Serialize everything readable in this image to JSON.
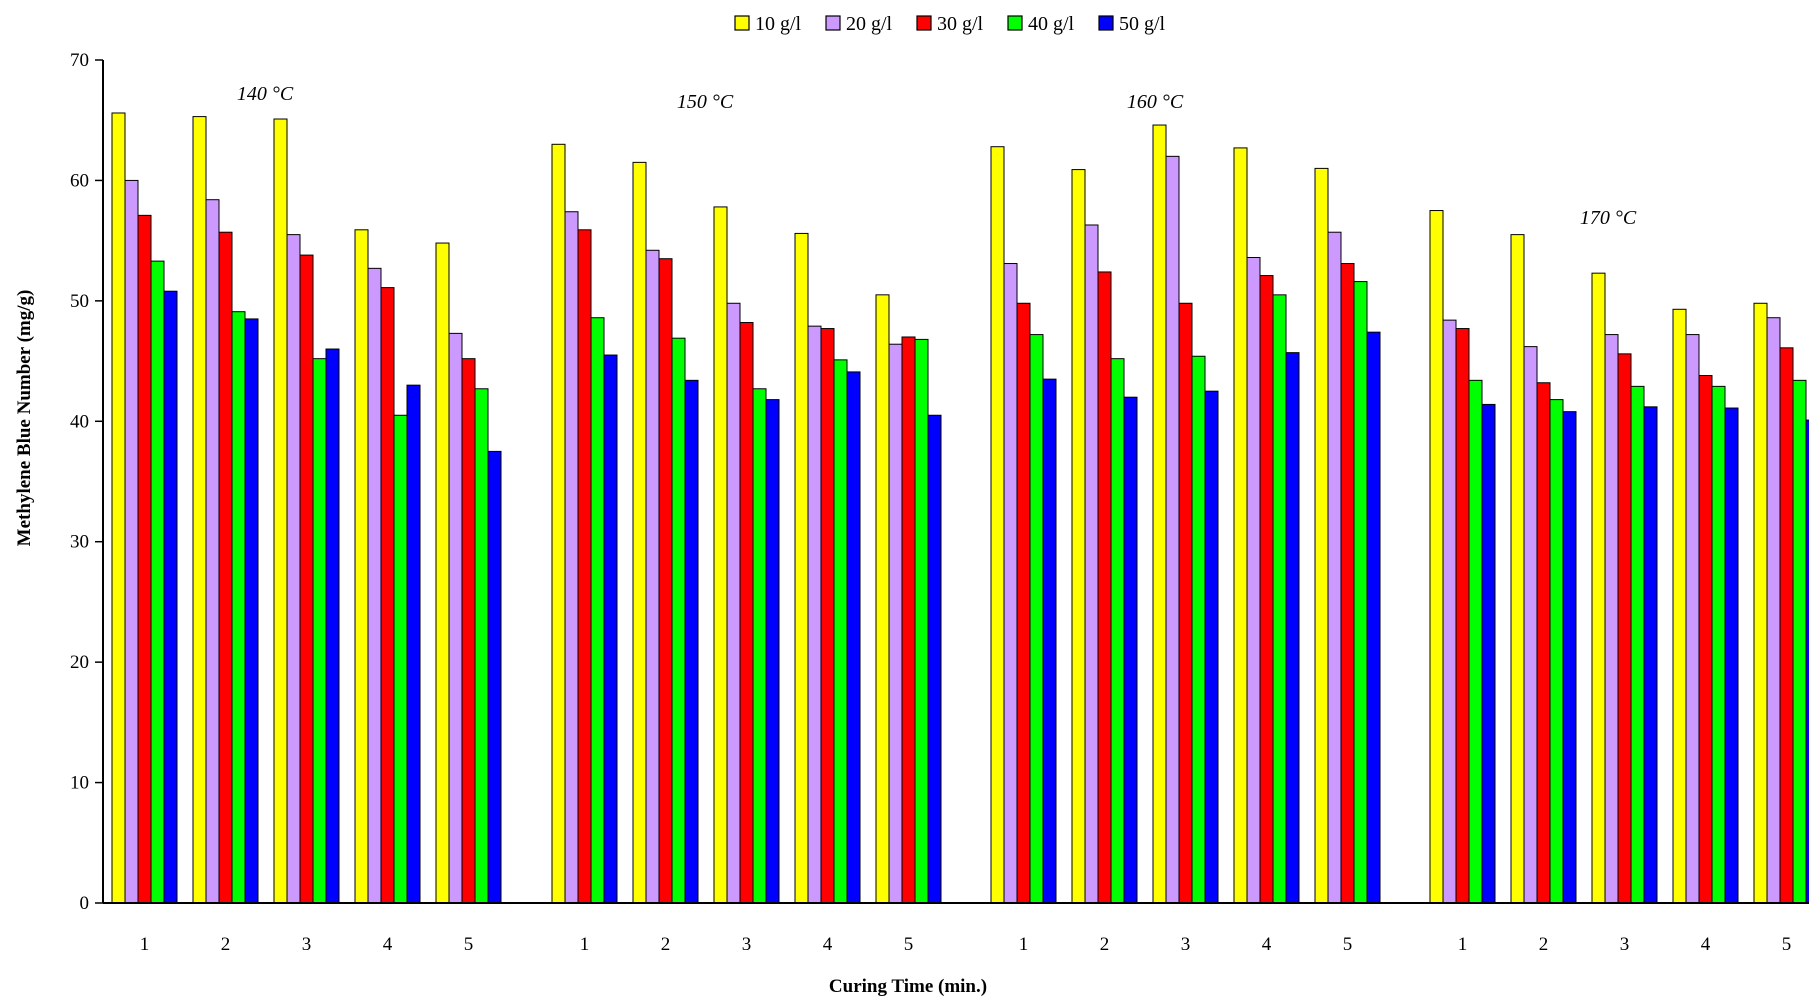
{
  "chart_data": {
    "type": "bar",
    "xlabel": "Curing Time (min.)",
    "ylabel": "Methylene Blue Number (mg/g)",
    "ylim": [
      0,
      70
    ],
    "yticks": [
      "0",
      "10",
      "20",
      "30",
      "40",
      "50",
      "60",
      "70"
    ],
    "grid": false,
    "legend_position": "top",
    "series": [
      {
        "name": "10 g/l",
        "color": "#ffff00"
      },
      {
        "name": "20 g/l",
        "color": "#cc99ff"
      },
      {
        "name": "30 g/l",
        "color": "#ff0000"
      },
      {
        "name": "40 g/l",
        "color": "#00ff00"
      },
      {
        "name": "50 g/l",
        "color": "#0000ff"
      }
    ],
    "groups": [
      {
        "label": "140 °C",
        "categories": [
          "1",
          "2",
          "3",
          "4",
          "5"
        ],
        "values": [
          [
            65.6,
            60.0,
            57.1,
            53.3,
            50.8
          ],
          [
            65.3,
            58.4,
            55.7,
            49.1,
            48.5
          ],
          [
            65.1,
            55.5,
            53.8,
            45.2,
            46.0
          ],
          [
            55.9,
            52.7,
            51.1,
            40.5,
            43.0
          ],
          [
            54.8,
            47.3,
            45.2,
            42.7,
            37.5
          ]
        ]
      },
      {
        "label": "150 °C",
        "categories": [
          "1",
          "2",
          "3",
          "4",
          "5"
        ],
        "values": [
          [
            63.0,
            57.4,
            55.9,
            48.6,
            45.5
          ],
          [
            61.5,
            54.2,
            53.5,
            46.9,
            43.4
          ],
          [
            57.8,
            49.8,
            48.2,
            42.7,
            41.8
          ],
          [
            55.6,
            47.9,
            47.7,
            45.1,
            44.1
          ],
          [
            50.5,
            46.4,
            47.0,
            46.8,
            40.5
          ]
        ]
      },
      {
        "label": "160 °C",
        "categories": [
          "1",
          "2",
          "3",
          "4",
          "5"
        ],
        "values": [
          [
            62.8,
            53.1,
            49.8,
            47.2,
            43.5
          ],
          [
            60.9,
            56.3,
            52.4,
            45.2,
            42.0
          ],
          [
            64.6,
            62.0,
            49.8,
            45.4,
            42.5
          ],
          [
            62.7,
            53.6,
            52.1,
            50.5,
            45.7
          ],
          [
            61.0,
            55.7,
            53.1,
            51.6,
            47.4
          ]
        ]
      },
      {
        "label": "170 °C",
        "categories": [
          "1",
          "2",
          "3",
          "4",
          "5"
        ],
        "values": [
          [
            57.5,
            48.4,
            47.7,
            43.4,
            41.4
          ],
          [
            55.5,
            46.2,
            43.2,
            41.8,
            40.8
          ],
          [
            52.3,
            47.2,
            45.6,
            42.9,
            41.2
          ],
          [
            49.3,
            47.2,
            43.8,
            42.9,
            41.1
          ],
          [
            49.8,
            48.6,
            46.1,
            43.4,
            40.1
          ]
        ]
      }
    ]
  }
}
